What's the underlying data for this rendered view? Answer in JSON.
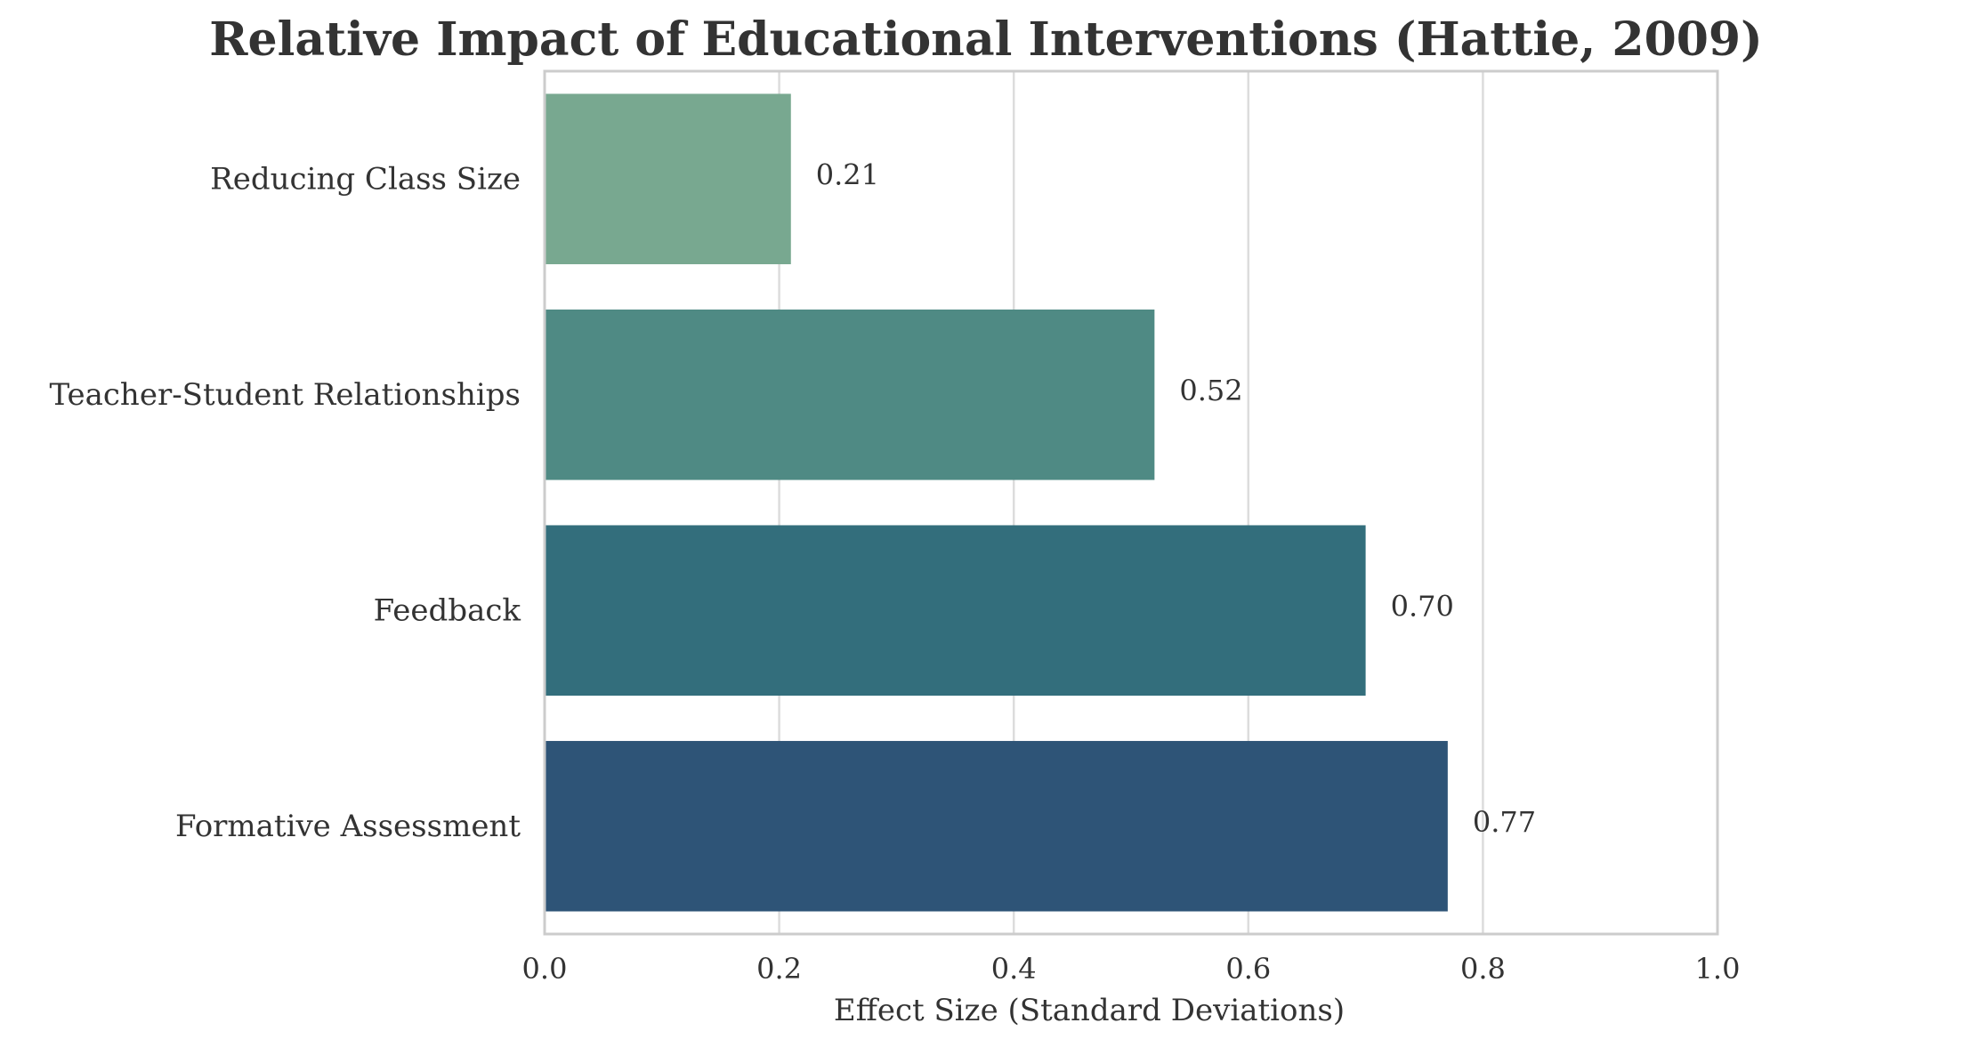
{
  "chart_data": {
    "type": "bar",
    "orientation": "horizontal",
    "title": "Relative Impact of Educational Interventions (Hattie, 2009)",
    "xlabel": "Effect Size (Standard Deviations)",
    "ylabel": "",
    "xlim": [
      0,
      1.0
    ],
    "xticks": [
      "0.0",
      "0.2",
      "0.4",
      "0.6",
      "0.8",
      "1.0"
    ],
    "grid": "vertical",
    "categories": [
      "Reducing Class Size",
      "Teacher-Student Relationships",
      "Feedback",
      "Formative Assessment"
    ],
    "values": [
      0.21,
      0.52,
      0.7,
      0.77
    ],
    "value_labels": [
      "0.21",
      "0.52",
      "0.70",
      "0.77"
    ],
    "colors": [
      "#78a890",
      "#4f8a84",
      "#336e7c",
      "#2e5477"
    ]
  }
}
